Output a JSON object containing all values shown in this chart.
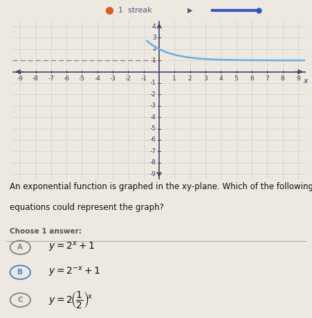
{
  "xlim": [
    -9.5,
    9.5
  ],
  "ylim": [
    -9.5,
    4.5
  ],
  "asymptote_y": 1,
  "curve_color": "#6aade4",
  "dashed_color": "#888888",
  "grid_color": "#c8d0d8",
  "axis_color": "#3a3a5c",
  "bg_color": "#ede8e0",
  "header_bg": "#e8e4dc",
  "header_text_color": "#555577",
  "text_question": "An exponential function is graphed in the xy-plane. Which of the following\nequations could represent the graph?",
  "text_choose": "Choose 1 answer:",
  "circle_color_selected": "#4a86c8",
  "circle_color_unselected": "#888888",
  "tick_font": 6.5,
  "axis_label_font": 8,
  "question_fontsize": 8.5,
  "answer_fontsize": 10,
  "choose_fontsize": 7.5
}
